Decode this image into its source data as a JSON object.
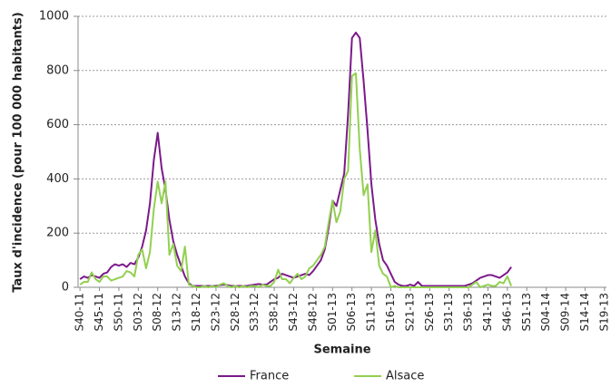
{
  "chart_data": {
    "type": "line",
    "x_label": "Semaine",
    "y_label": "Taux d'incidence (pour 100 000 habitants)",
    "categories": [
      "S40-11",
      null,
      null,
      null,
      null,
      "S45-11",
      null,
      null,
      null,
      null,
      "S50-11",
      null,
      null,
      null,
      null,
      "S03-12",
      null,
      null,
      null,
      null,
      "S08-12",
      null,
      null,
      null,
      null,
      "S13-12",
      null,
      null,
      null,
      null,
      "S18-12",
      null,
      null,
      null,
      null,
      "S23-12",
      null,
      null,
      null,
      null,
      "S28-12",
      null,
      null,
      null,
      null,
      "S33-12",
      null,
      null,
      null,
      null,
      "S38-12",
      null,
      null,
      null,
      null,
      "S43-12",
      null,
      null,
      null,
      null,
      "S48-12",
      null,
      null,
      null,
      null,
      "S01-13",
      null,
      null,
      null,
      null,
      "S06-13",
      null,
      null,
      null,
      null,
      "S11-13",
      null,
      null,
      null,
      null,
      "S16-13",
      null,
      null,
      null,
      null,
      "S21-13",
      null,
      null,
      null,
      null,
      "S26-13",
      null,
      null,
      null,
      null,
      "S31-13",
      null,
      null,
      null,
      null,
      "S36-13",
      null,
      null,
      null,
      null,
      "S41-13",
      null,
      null,
      null,
      null,
      "S46-13",
      null,
      null,
      null,
      null,
      "S51-13",
      null,
      null,
      null,
      null,
      "S04-14",
      null,
      null,
      null,
      null,
      "S09-14",
      null,
      null,
      null,
      null,
      "S14-14",
      null,
      null,
      null,
      null,
      "S19-13"
    ],
    "series": [
      {
        "name": "France",
        "color": "#7b1a8a",
        "values": [
          30,
          40,
          35,
          45,
          40,
          35,
          50,
          55,
          75,
          85,
          80,
          85,
          75,
          90,
          85,
          110,
          150,
          210,
          310,
          470,
          570,
          440,
          360,
          250,
          170,
          120,
          80,
          40,
          15,
          5,
          5,
          5,
          5,
          5,
          5,
          5,
          8,
          10,
          8,
          5,
          5,
          5,
          5,
          5,
          8,
          10,
          12,
          10,
          10,
          20,
          30,
          35,
          50,
          45,
          40,
          35,
          40,
          45,
          50,
          45,
          60,
          80,
          100,
          140,
          220,
          320,
          300,
          360,
          420,
          640,
          920,
          940,
          920,
          760,
          580,
          380,
          250,
          160,
          100,
          80,
          50,
          20,
          10,
          5,
          5,
          10,
          5,
          20,
          5,
          5,
          5,
          5,
          5,
          5,
          5,
          5,
          5,
          5,
          5,
          5,
          10,
          15,
          25,
          35,
          40,
          45,
          45,
          40,
          35,
          45,
          55,
          75,
          null,
          null,
          null,
          null,
          null,
          null,
          null,
          null,
          null,
          null,
          null,
          null,
          null,
          null,
          null,
          null,
          null,
          null,
          null,
          null,
          null,
          null,
          null,
          null
        ]
      },
      {
        "name": "Alsace",
        "color": "#92d050",
        "values": [
          10,
          20,
          20,
          55,
          30,
          20,
          40,
          40,
          25,
          30,
          35,
          40,
          60,
          55,
          40,
          120,
          140,
          70,
          130,
          290,
          390,
          310,
          390,
          120,
          160,
          80,
          60,
          150,
          10,
          5,
          0,
          0,
          5,
          0,
          5,
          0,
          10,
          15,
          5,
          0,
          5,
          0,
          5,
          0,
          5,
          5,
          0,
          10,
          5,
          5,
          20,
          65,
          30,
          30,
          15,
          35,
          50,
          30,
          40,
          70,
          80,
          100,
          120,
          150,
          240,
          320,
          240,
          280,
          400,
          430,
          780,
          790,
          510,
          340,
          380,
          130,
          210,
          80,
          50,
          40,
          0,
          5,
          0,
          0,
          0,
          0,
          0,
          0,
          0,
          0,
          0,
          0,
          0,
          0,
          0,
          0,
          0,
          0,
          0,
          0,
          0,
          10,
          20,
          0,
          5,
          10,
          5,
          5,
          20,
          15,
          40,
          5,
          null,
          null,
          null,
          null,
          null,
          null,
          null,
          null,
          null,
          null,
          null,
          null,
          null,
          null,
          null,
          null,
          null,
          null,
          null,
          null,
          null,
          null,
          null,
          null
        ]
      }
    ],
    "ylim": [
      0,
      1000
    ],
    "yticks": [
      0,
      200,
      400,
      600,
      800,
      1000
    ],
    "grid": true
  }
}
